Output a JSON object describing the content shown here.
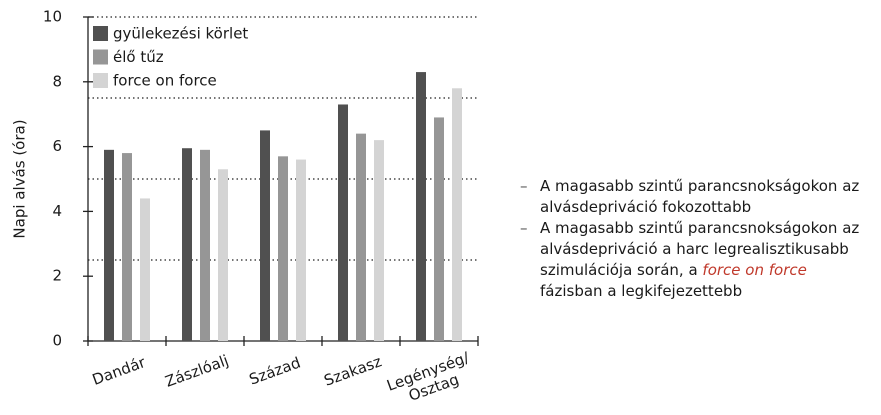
{
  "chart_data": {
    "type": "bar",
    "y_label": "Napi alvás (óra)",
    "categories": [
      "Dandár",
      "Zászlóalj",
      "Század",
      "Szakasz",
      "Legénység/ Osztag"
    ],
    "series": [
      {
        "name": "gyülekezési körlet",
        "color": "#505050",
        "values": [
          5.9,
          5.95,
          6.5,
          7.3,
          8.3
        ]
      },
      {
        "name": "élő tűz",
        "color": "#969696",
        "values": [
          5.8,
          5.9,
          5.7,
          6.4,
          6.9
        ]
      },
      {
        "name": "force on force",
        "color": "#d4d4d4",
        "values": [
          4.4,
          5.3,
          5.6,
          6.2,
          7.8
        ]
      }
    ],
    "ylim": [
      0,
      10
    ],
    "yticks": [
      0,
      2,
      4,
      6,
      8,
      10
    ],
    "ygrid": [
      2.5,
      5,
      7.5,
      10
    ],
    "legend": "upper left"
  },
  "notes": [
    [
      "A magasabb szintű parancsnokságokon az alvásdepriváció fokozottabb"
    ],
    [
      "A magasabb szintű parancsnokságokon az alvásdepriváció a harc legrealisztikusabb szimulációja során, a ",
      "force on force",
      " fázisban a legkifejezettebb"
    ]
  ]
}
